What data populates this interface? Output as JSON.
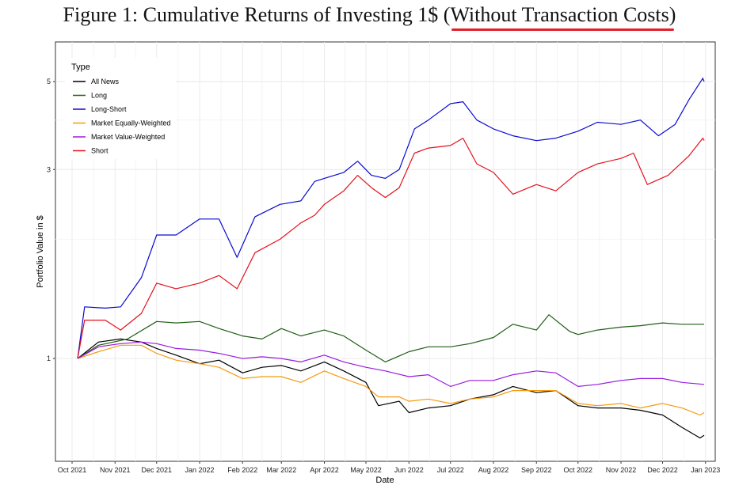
{
  "figure": {
    "title_main": "Figure 1: Cumulative Returns of Investing 1$ (",
    "title_highlight": "Without Transaction Costs",
    "title_end": ")"
  },
  "chart_data": {
    "type": "line",
    "title": "Figure 1: Cumulative Returns of Investing 1$ (Without Transaction Costs)",
    "xlabel": "Date",
    "ylabel": "Portfolio Value in $",
    "y_scale": "log",
    "ylim": [
      0.55,
      6.3
    ],
    "xlim": [
      "2021-09-19",
      "2023-01-08"
    ],
    "y_ticks": [
      1,
      3,
      5
    ],
    "x_ticks": [
      {
        "date": "2021-10-01",
        "label": "Oct 2021"
      },
      {
        "date": "2021-11-01",
        "label": "Nov 2021"
      },
      {
        "date": "2021-12-01",
        "label": "Dec 2021"
      },
      {
        "date": "2022-01-01",
        "label": "Jan 2022"
      },
      {
        "date": "2022-02-01",
        "label": "Feb 2022"
      },
      {
        "date": "2022-03-01",
        "label": "Mar 2022"
      },
      {
        "date": "2022-04-01",
        "label": "Apr 2022"
      },
      {
        "date": "2022-05-01",
        "label": "May 2022"
      },
      {
        "date": "2022-06-01",
        "label": "Jun 2022"
      },
      {
        "date": "2022-07-01",
        "label": "Jul 2022"
      },
      {
        "date": "2022-08-01",
        "label": "Aug 2022"
      },
      {
        "date": "2022-09-01",
        "label": "Sep 2022"
      },
      {
        "date": "2022-10-01",
        "label": "Oct 2022"
      },
      {
        "date": "2022-11-01",
        "label": "Nov 2022"
      },
      {
        "date": "2022-12-01",
        "label": "Dec 2022"
      },
      {
        "date": "2023-01-01",
        "label": "Jan 2023"
      }
    ],
    "grid": true,
    "legend_title": "Type",
    "legend_position": "top-left",
    "series": [
      {
        "name": "All News",
        "color": "#000000",
        "points": [
          [
            "2021-10-05",
            1.0
          ],
          [
            "2021-10-20",
            1.1
          ],
          [
            "2021-11-05",
            1.12
          ],
          [
            "2021-11-20",
            1.1
          ],
          [
            "2021-12-01",
            1.06
          ],
          [
            "2021-12-15",
            1.02
          ],
          [
            "2022-01-01",
            0.97
          ],
          [
            "2022-01-15",
            0.99
          ],
          [
            "2022-02-01",
            0.92
          ],
          [
            "2022-02-15",
            0.95
          ],
          [
            "2022-03-01",
            0.96
          ],
          [
            "2022-03-15",
            0.93
          ],
          [
            "2022-04-01",
            0.98
          ],
          [
            "2022-04-15",
            0.93
          ],
          [
            "2022-05-01",
            0.87
          ],
          [
            "2022-05-10",
            0.76
          ],
          [
            "2022-05-25",
            0.78
          ],
          [
            "2022-06-01",
            0.73
          ],
          [
            "2022-06-15",
            0.75
          ],
          [
            "2022-07-01",
            0.76
          ],
          [
            "2022-07-15",
            0.79
          ],
          [
            "2022-08-01",
            0.81
          ],
          [
            "2022-08-15",
            0.85
          ],
          [
            "2022-09-01",
            0.82
          ],
          [
            "2022-09-15",
            0.83
          ],
          [
            "2022-10-01",
            0.76
          ],
          [
            "2022-10-15",
            0.75
          ],
          [
            "2022-11-01",
            0.75
          ],
          [
            "2022-11-15",
            0.74
          ],
          [
            "2022-12-01",
            0.72
          ],
          [
            "2022-12-15",
            0.67
          ],
          [
            "2022-12-28",
            0.63
          ],
          [
            "2022-12-31",
            0.64
          ]
        ]
      },
      {
        "name": "Long",
        "color": "#1e5e14",
        "points": [
          [
            "2021-10-05",
            1.0
          ],
          [
            "2021-10-20",
            1.08
          ],
          [
            "2021-11-10",
            1.12
          ],
          [
            "2021-12-01",
            1.24
          ],
          [
            "2021-12-15",
            1.23
          ],
          [
            "2022-01-01",
            1.24
          ],
          [
            "2022-01-15",
            1.19
          ],
          [
            "2022-02-01",
            1.14
          ],
          [
            "2022-02-15",
            1.12
          ],
          [
            "2022-03-01",
            1.19
          ],
          [
            "2022-03-15",
            1.14
          ],
          [
            "2022-04-01",
            1.18
          ],
          [
            "2022-04-15",
            1.14
          ],
          [
            "2022-05-01",
            1.05
          ],
          [
            "2022-05-15",
            0.98
          ],
          [
            "2022-06-01",
            1.04
          ],
          [
            "2022-06-15",
            1.07
          ],
          [
            "2022-07-01",
            1.07
          ],
          [
            "2022-07-15",
            1.09
          ],
          [
            "2022-08-01",
            1.13
          ],
          [
            "2022-08-15",
            1.22
          ],
          [
            "2022-09-01",
            1.18
          ],
          [
            "2022-09-10",
            1.29
          ],
          [
            "2022-09-25",
            1.17
          ],
          [
            "2022-10-01",
            1.15
          ],
          [
            "2022-10-15",
            1.18
          ],
          [
            "2022-11-01",
            1.2
          ],
          [
            "2022-11-15",
            1.21
          ],
          [
            "2022-12-01",
            1.23
          ],
          [
            "2022-12-15",
            1.22
          ],
          [
            "2022-12-31",
            1.22
          ]
        ]
      },
      {
        "name": "Long-Short",
        "color": "#0a0ad2",
        "points": [
          [
            "2021-10-05",
            1.0
          ],
          [
            "2021-10-10",
            1.35
          ],
          [
            "2021-10-25",
            1.34
          ],
          [
            "2021-11-05",
            1.35
          ],
          [
            "2021-11-20",
            1.6
          ],
          [
            "2021-12-01",
            2.05
          ],
          [
            "2021-12-15",
            2.05
          ],
          [
            "2022-01-01",
            2.25
          ],
          [
            "2022-01-15",
            2.25
          ],
          [
            "2022-01-28",
            1.8
          ],
          [
            "2022-02-10",
            2.28
          ],
          [
            "2022-02-28",
            2.45
          ],
          [
            "2022-03-15",
            2.5
          ],
          [
            "2022-03-25",
            2.8
          ],
          [
            "2022-04-01",
            2.85
          ],
          [
            "2022-04-15",
            2.95
          ],
          [
            "2022-04-25",
            3.15
          ],
          [
            "2022-05-05",
            2.9
          ],
          [
            "2022-05-15",
            2.85
          ],
          [
            "2022-05-25",
            3.0
          ],
          [
            "2022-06-05",
            3.8
          ],
          [
            "2022-06-15",
            4.0
          ],
          [
            "2022-07-01",
            4.4
          ],
          [
            "2022-07-10",
            4.45
          ],
          [
            "2022-07-20",
            4.0
          ],
          [
            "2022-08-01",
            3.8
          ],
          [
            "2022-08-15",
            3.65
          ],
          [
            "2022-09-01",
            3.55
          ],
          [
            "2022-09-15",
            3.6
          ],
          [
            "2022-10-01",
            3.75
          ],
          [
            "2022-10-15",
            3.95
          ],
          [
            "2022-11-01",
            3.9
          ],
          [
            "2022-11-15",
            4.0
          ],
          [
            "2022-11-28",
            3.65
          ],
          [
            "2022-12-10",
            3.9
          ],
          [
            "2022-12-20",
            4.5
          ],
          [
            "2022-12-30",
            5.1
          ],
          [
            "2022-12-31",
            5.0
          ]
        ]
      },
      {
        "name": "Market Equally-Weighted",
        "color": "#f59a11",
        "points": [
          [
            "2021-10-05",
            1.0
          ],
          [
            "2021-10-20",
            1.04
          ],
          [
            "2021-11-05",
            1.08
          ],
          [
            "2021-11-20",
            1.08
          ],
          [
            "2021-12-01",
            1.03
          ],
          [
            "2021-12-15",
            0.99
          ],
          [
            "2022-01-01",
            0.97
          ],
          [
            "2022-01-15",
            0.95
          ],
          [
            "2022-02-01",
            0.89
          ],
          [
            "2022-02-15",
            0.9
          ],
          [
            "2022-03-01",
            0.9
          ],
          [
            "2022-03-15",
            0.87
          ],
          [
            "2022-04-01",
            0.93
          ],
          [
            "2022-04-15",
            0.89
          ],
          [
            "2022-05-01",
            0.85
          ],
          [
            "2022-05-10",
            0.8
          ],
          [
            "2022-05-25",
            0.8
          ],
          [
            "2022-06-01",
            0.78
          ],
          [
            "2022-06-15",
            0.79
          ],
          [
            "2022-07-01",
            0.77
          ],
          [
            "2022-07-15",
            0.79
          ],
          [
            "2022-08-01",
            0.8
          ],
          [
            "2022-08-15",
            0.83
          ],
          [
            "2022-09-01",
            0.83
          ],
          [
            "2022-09-15",
            0.83
          ],
          [
            "2022-10-01",
            0.77
          ],
          [
            "2022-10-15",
            0.76
          ],
          [
            "2022-11-01",
            0.77
          ],
          [
            "2022-11-15",
            0.75
          ],
          [
            "2022-12-01",
            0.77
          ],
          [
            "2022-12-15",
            0.75
          ],
          [
            "2022-12-28",
            0.72
          ],
          [
            "2022-12-31",
            0.73
          ]
        ]
      },
      {
        "name": "Market Value-Weighted",
        "color": "#9a1be0",
        "points": [
          [
            "2021-10-05",
            1.0
          ],
          [
            "2021-10-20",
            1.07
          ],
          [
            "2021-11-05",
            1.09
          ],
          [
            "2021-11-20",
            1.1
          ],
          [
            "2021-12-01",
            1.09
          ],
          [
            "2021-12-15",
            1.06
          ],
          [
            "2022-01-01",
            1.05
          ],
          [
            "2022-01-15",
            1.03
          ],
          [
            "2022-02-01",
            1.0
          ],
          [
            "2022-02-15",
            1.01
          ],
          [
            "2022-03-01",
            1.0
          ],
          [
            "2022-03-15",
            0.98
          ],
          [
            "2022-04-01",
            1.02
          ],
          [
            "2022-04-15",
            0.98
          ],
          [
            "2022-05-01",
            0.95
          ],
          [
            "2022-05-15",
            0.93
          ],
          [
            "2022-06-01",
            0.9
          ],
          [
            "2022-06-15",
            0.91
          ],
          [
            "2022-07-01",
            0.85
          ],
          [
            "2022-07-15",
            0.88
          ],
          [
            "2022-08-01",
            0.88
          ],
          [
            "2022-08-15",
            0.91
          ],
          [
            "2022-09-01",
            0.93
          ],
          [
            "2022-09-15",
            0.92
          ],
          [
            "2022-10-01",
            0.85
          ],
          [
            "2022-10-15",
            0.86
          ],
          [
            "2022-11-01",
            0.88
          ],
          [
            "2022-11-15",
            0.89
          ],
          [
            "2022-12-01",
            0.89
          ],
          [
            "2022-12-15",
            0.87
          ],
          [
            "2022-12-31",
            0.86
          ]
        ]
      },
      {
        "name": "Short",
        "color": "#e3111c",
        "points": [
          [
            "2021-10-05",
            1.0
          ],
          [
            "2021-10-10",
            1.25
          ],
          [
            "2021-10-25",
            1.25
          ],
          [
            "2021-11-05",
            1.18
          ],
          [
            "2021-11-20",
            1.3
          ],
          [
            "2021-12-01",
            1.55
          ],
          [
            "2021-12-15",
            1.5
          ],
          [
            "2022-01-01",
            1.55
          ],
          [
            "2022-01-15",
            1.62
          ],
          [
            "2022-01-28",
            1.5
          ],
          [
            "2022-02-10",
            1.85
          ],
          [
            "2022-02-28",
            2.0
          ],
          [
            "2022-03-15",
            2.2
          ],
          [
            "2022-03-25",
            2.3
          ],
          [
            "2022-04-01",
            2.45
          ],
          [
            "2022-04-15",
            2.65
          ],
          [
            "2022-04-25",
            2.9
          ],
          [
            "2022-05-05",
            2.7
          ],
          [
            "2022-05-15",
            2.55
          ],
          [
            "2022-05-25",
            2.7
          ],
          [
            "2022-06-05",
            3.3
          ],
          [
            "2022-06-15",
            3.4
          ],
          [
            "2022-07-01",
            3.45
          ],
          [
            "2022-07-10",
            3.6
          ],
          [
            "2022-07-20",
            3.1
          ],
          [
            "2022-08-01",
            2.95
          ],
          [
            "2022-08-15",
            2.6
          ],
          [
            "2022-09-01",
            2.75
          ],
          [
            "2022-09-15",
            2.65
          ],
          [
            "2022-10-01",
            2.95
          ],
          [
            "2022-10-15",
            3.1
          ],
          [
            "2022-11-01",
            3.2
          ],
          [
            "2022-11-10",
            3.3
          ],
          [
            "2022-11-20",
            2.75
          ],
          [
            "2022-12-05",
            2.9
          ],
          [
            "2022-12-20",
            3.25
          ],
          [
            "2022-12-30",
            3.6
          ],
          [
            "2022-12-31",
            3.55
          ]
        ]
      }
    ]
  }
}
